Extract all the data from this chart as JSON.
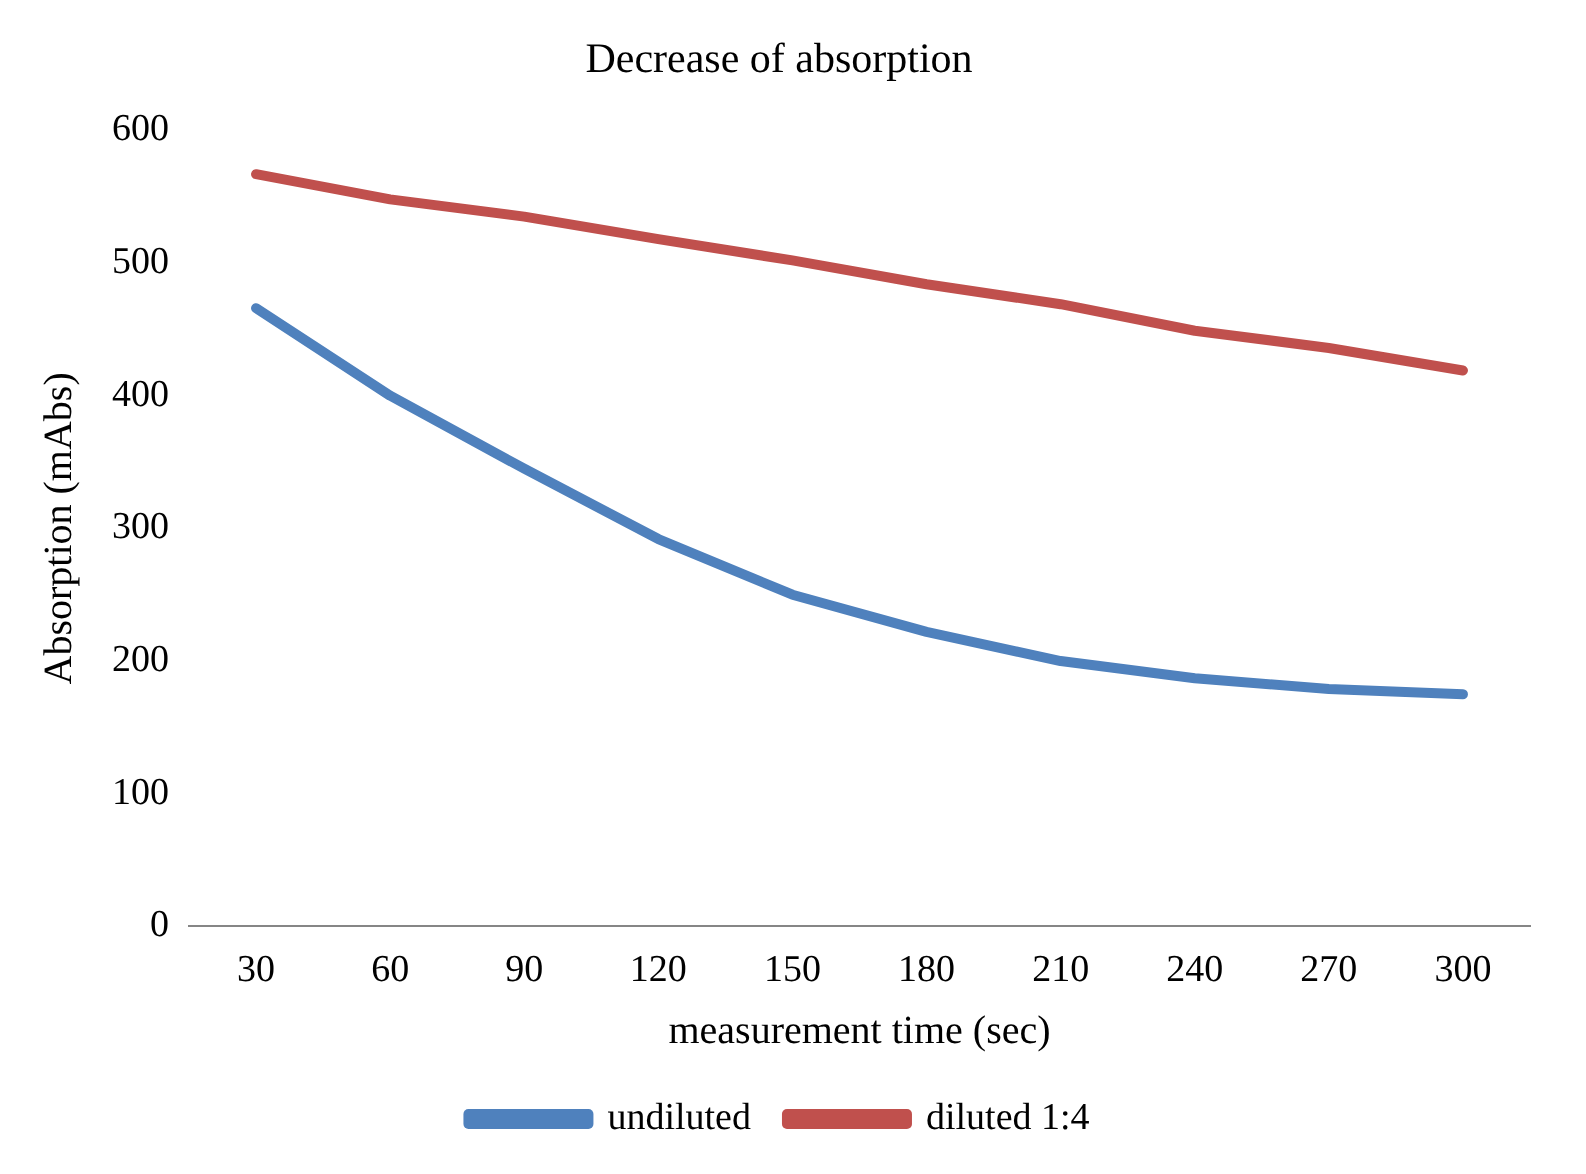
{
  "chart_data": {
    "type": "line",
    "title": "Decrease of absorption",
    "xlabel": "measurement time (sec)",
    "ylabel": "Absorption (mAbs)",
    "categories": [
      "30",
      "60",
      "90",
      "120",
      "150",
      "180",
      "210",
      "240",
      "270",
      "300"
    ],
    "series": [
      {
        "name": "undiluted",
        "color": "#4f81bd",
        "values": [
          466,
          400,
          345,
          292,
          250,
          222,
          200,
          187,
          179,
          175
        ]
      },
      {
        "name": "diluted 1:4",
        "color": "#c0504d",
        "values": [
          567,
          548,
          535,
          518,
          502,
          484,
          469,
          449,
          436,
          419
        ]
      }
    ],
    "ylim": [
      0,
      600
    ],
    "yticks": [
      0,
      100,
      200,
      300,
      400,
      500,
      600
    ],
    "grid": false,
    "legend": "bottom",
    "marker": "none",
    "line_style": "solid"
  }
}
